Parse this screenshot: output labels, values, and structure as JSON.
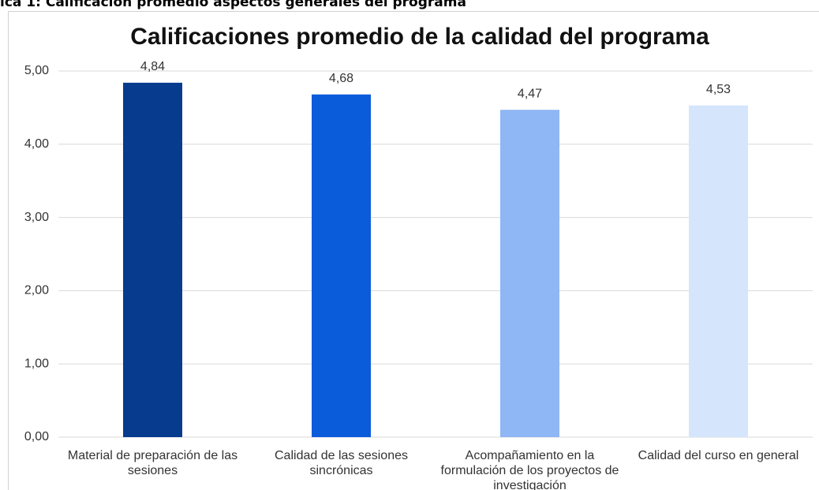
{
  "caption": "ica 1: Calificación promedio aspectos generales del programa",
  "chart_data": {
    "type": "bar",
    "title": "Calificaciones promedio de la calidad del programa",
    "categories": [
      "Material de preparación de las sesiones",
      "Calidad de las sesiones sincrónicas",
      "Acompañamiento en la formulación de los proyectos de investigación",
      "Calidad del curso en general"
    ],
    "values": [
      4.84,
      4.68,
      4.47,
      4.53
    ],
    "value_labels": [
      "4,84",
      "4,68",
      "4,47",
      "4,53"
    ],
    "colors": [
      "#073b8e",
      "#0b5cdb",
      "#8fb6f5",
      "#d5e5fc"
    ],
    "ylim": [
      0,
      5
    ],
    "yticks": [
      {
        "value": 0,
        "label": "0,00"
      },
      {
        "value": 1,
        "label": "1,00"
      },
      {
        "value": 2,
        "label": "2,00"
      },
      {
        "value": 3,
        "label": "3,00"
      },
      {
        "value": 4,
        "label": "4,00"
      },
      {
        "value": 5,
        "label": "5,00"
      }
    ],
    "grid": true
  }
}
